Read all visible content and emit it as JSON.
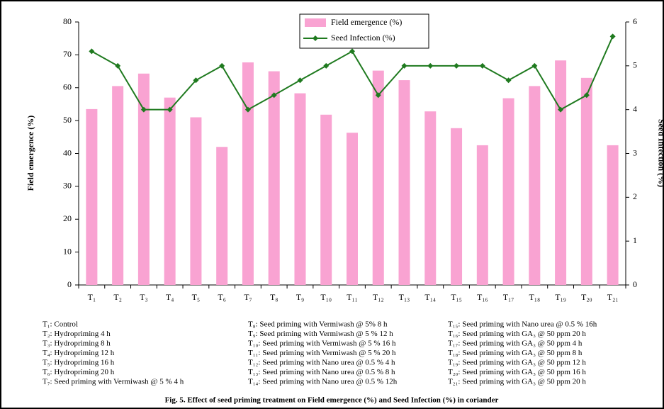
{
  "chart_data": {
    "type": "bar-line",
    "caption": "Fig. 5. Effect of seed priming treatment on Field emergence (%) and Seed Infection (%) in coriander",
    "y_label": "Field emergence (%)",
    "y2_label": "Seed Infection (%)",
    "categories": [
      "T₁",
      "T₂",
      "T₃",
      "T₄",
      "T₅",
      "T₆",
      "T₇",
      "T₈",
      "T₉",
      "T₁₀",
      "T₁₁",
      "T₁₂",
      "T₁₃",
      "T₁₄",
      "T₁₅",
      "T₁₆",
      "T₁₇",
      "T₁₈",
      "T₁₉",
      "T₂₀",
      "T₂₁"
    ],
    "series": [
      {
        "name": "Field emergence (%)",
        "type": "bar",
        "color": "#f9a3d2",
        "values": [
          53.5,
          60.5,
          64.3,
          57,
          51,
          42,
          67.7,
          65,
          58.3,
          51.8,
          46.3,
          65.2,
          62.3,
          52.8,
          47.7,
          42.5,
          56.8,
          60.5,
          68.3,
          63,
          42.5
        ]
      },
      {
        "name": "Seed Infection (%)",
        "type": "line",
        "axis": "y2",
        "color": "#1f7a1f",
        "values": [
          5.33,
          5.0,
          4.0,
          4.0,
          4.67,
          5.0,
          4.0,
          4.33,
          4.67,
          5.0,
          5.33,
          4.33,
          5.0,
          5.0,
          5.0,
          5.0,
          4.67,
          5.0,
          4.0,
          4.33,
          5.67
        ]
      }
    ],
    "ylim": [
      0,
      80
    ],
    "yticks": [
      0,
      10,
      20,
      30,
      40,
      50,
      60,
      70,
      80
    ],
    "y2lim": [
      0,
      6
    ],
    "y2ticks": [
      0,
      1,
      2,
      3,
      4,
      5,
      6
    ],
    "legend": "top",
    "notes": [
      "T₁: Control",
      "T₂: Hydropriming 4 h",
      "T₃: Hydropriming 8 h",
      "T₄: Hydropriming 12 h",
      "T₅: Hydropriming 16 h",
      "T₆: Hydropriming 20 h",
      "T₇: Seed priming with Vermiwash @ 5 % 4 h",
      "T₈: Seed priming with Vermiwash @ 5% 8 h",
      "T₉: Seed priming with Vermiwash @ 5 % 12 h",
      "T₁₀: Seed priming with Vermiwash @ 5 % 16 h",
      "T₁₁:  Seed priming with Vermiwash @ 5 % 20 h",
      "T₁₂: Seed priming with Nano urea @ 0.5 % 4 h",
      "T₁₃:  Seed priming with Nano urea @ 0.5 % 8 h",
      "T₁₄:  Seed priming with Nano urea @ 0.5 % 12h",
      "T₁₅:  Seed priming with Nano urea @ 0.5 % 16h",
      "T₁₆:  Seed priming with GA₃ @ 50 ppm 20 h",
      "T₁₇:  Seed priming with GA₃ @ 50 ppm 4 h",
      "T₁₈:  Seed priming with GA₃ @ 50 ppm 8 h",
      "T₁₉:  Seed priming with GA₃ @ 50 ppm 12 h",
      "T₂₀:  Seed priming with GA₃ @ 50 ppm 16 h",
      "T₂₁:  Seed priming with GA₃ @ 50 ppm 20 h"
    ]
  }
}
